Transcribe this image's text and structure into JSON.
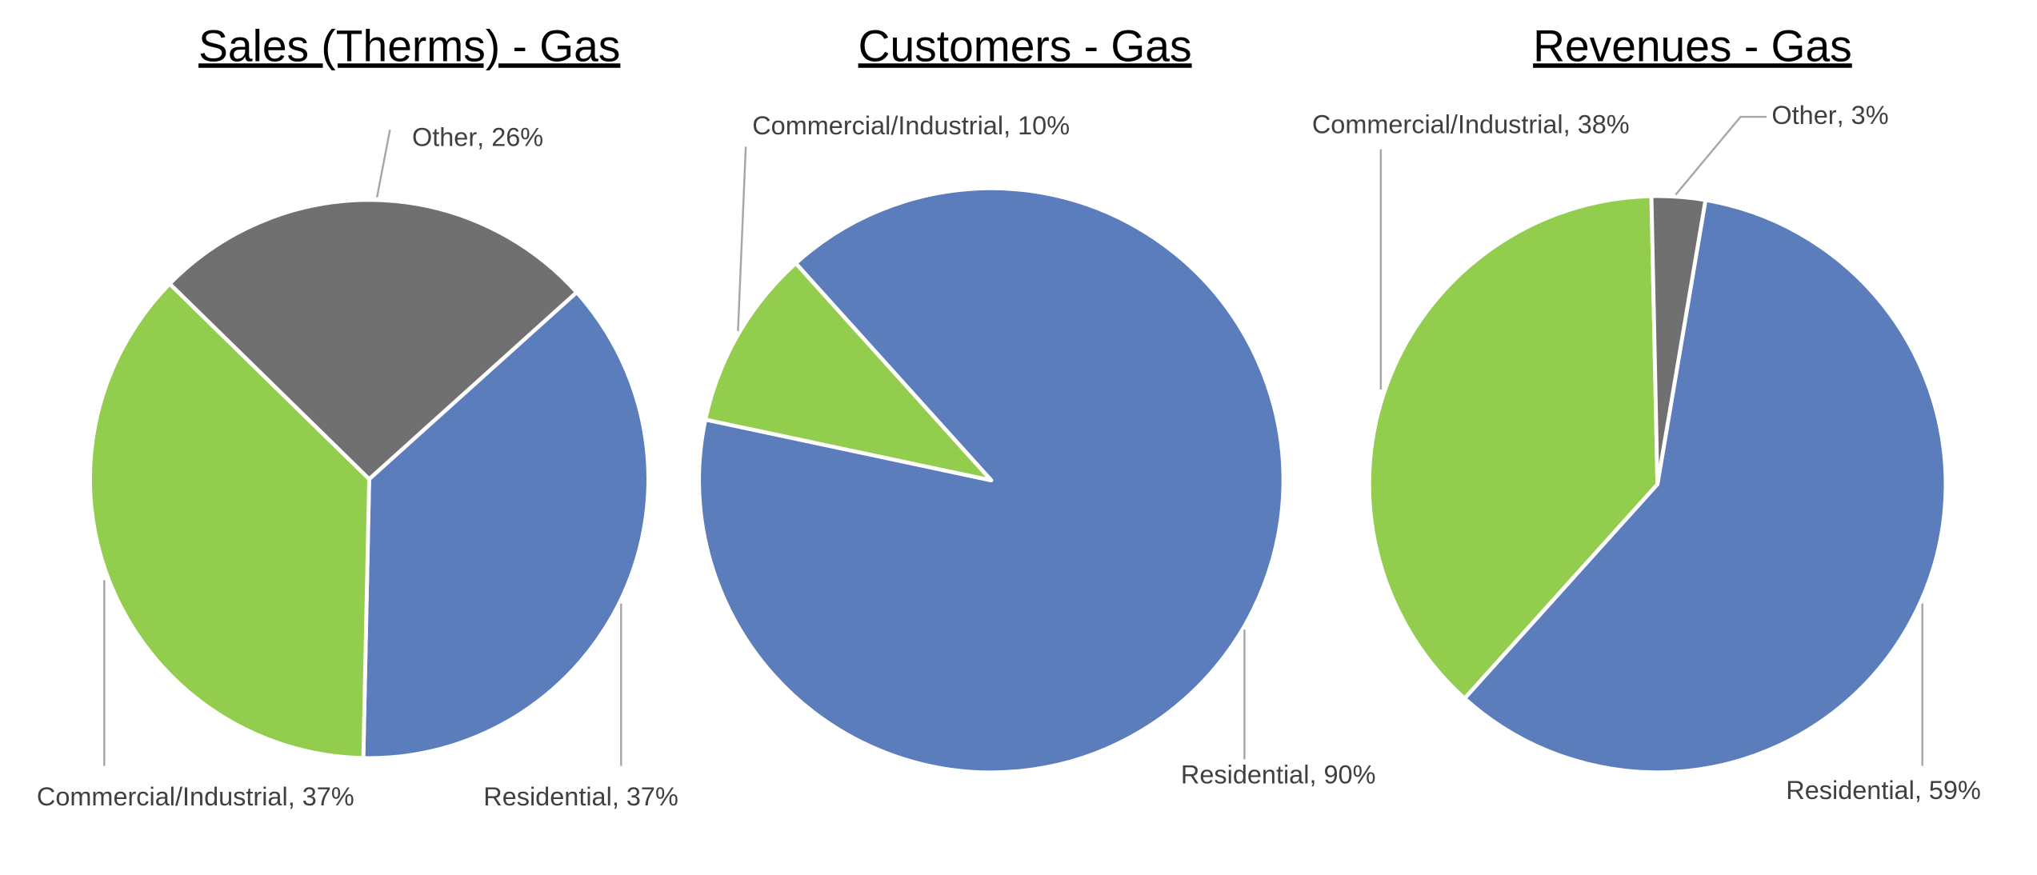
{
  "chart_data": [
    {
      "type": "pie",
      "title": "Sales (Therms) - Gas",
      "categories": [
        "Residential",
        "Commercial/Industrial",
        "Other"
      ],
      "values": [
        37,
        37,
        26
      ],
      "value_labels": [
        "37%",
        "37%",
        "26%"
      ],
      "colors": [
        "#5b7dbb",
        "#92cd4e",
        "#707070"
      ]
    },
    {
      "type": "pie",
      "title": "Customers - Gas",
      "categories": [
        "Residential",
        "Commercial/Industrial"
      ],
      "values": [
        90,
        10
      ],
      "value_labels": [
        "90%",
        "10%"
      ],
      "colors": [
        "#5b7dbb",
        "#92cd4e"
      ]
    },
    {
      "type": "pie",
      "title": "Revenues - Gas",
      "categories": [
        "Residential",
        "Commercial/Industrial",
        "Other"
      ],
      "values": [
        59,
        38,
        3
      ],
      "value_labels": [
        "59%",
        "38%",
        "3%"
      ],
      "colors": [
        "#5b7dbb",
        "#92cd4e",
        "#707070"
      ]
    }
  ]
}
